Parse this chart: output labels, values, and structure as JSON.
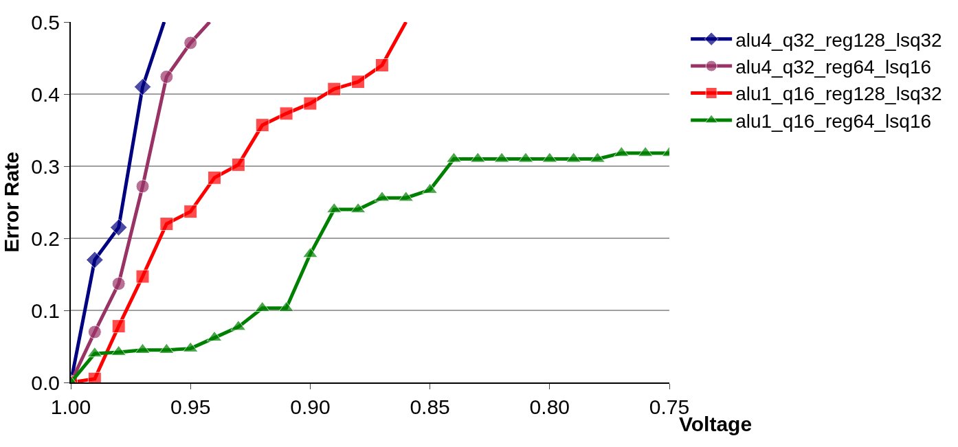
{
  "chart_data": {
    "type": "line",
    "xlabel": "Voltage",
    "ylabel": "Error Rate",
    "xlim": [
      1.0,
      0.75
    ],
    "xticks": [
      {
        "value": 1.0,
        "label": "1.00"
      },
      0.95,
      {
        "value": 0.9,
        "label": "0.90"
      },
      0.85,
      {
        "value": 0.8,
        "label": "0.80"
      },
      0.75
    ],
    "ylim": [
      0,
      0.5
    ],
    "yticks": [
      {
        "value": 0,
        "label": "0.0"
      },
      0.1,
      0.2,
      0.3,
      0.4,
      0.5
    ],
    "grid": "y",
    "legend": "right",
    "line_style": "solid",
    "series": [
      {
        "name": "alu4_q32_reg128_lsq32",
        "color": "#000080",
        "marker": "diamond",
        "x": [
          1.0,
          0.99,
          0.98,
          0.97,
          0.961
        ],
        "values": [
          0,
          0.17,
          0.215,
          0.41,
          0.5
        ]
      },
      {
        "name": "alu4_q32_reg64_lsq16",
        "color": "#993366",
        "marker": "circle",
        "x": [
          1.0,
          0.99,
          0.98,
          0.97,
          0.96,
          0.95,
          0.942
        ],
        "values": [
          0,
          0.07,
          0.137,
          0.272,
          0.424,
          0.471,
          0.5
        ]
      },
      {
        "name": "alu1_q16_reg128_lsq32",
        "color": "#ff0000",
        "marker": "square",
        "x": [
          1.0,
          0.99,
          0.98,
          0.97,
          0.96,
          0.95,
          0.94,
          0.93,
          0.92,
          0.91,
          0.9,
          0.89,
          0.88,
          0.87,
          0.86
        ],
        "values": [
          0,
          0.005,
          0.078,
          0.147,
          0.22,
          0.237,
          0.284,
          0.302,
          0.357,
          0.373,
          0.387,
          0.407,
          0.417,
          0.44,
          0.5
        ]
      },
      {
        "name": "alu1_q16_reg64_lsq16",
        "color": "#008000",
        "marker": "triangle",
        "x": [
          1.0,
          0.99,
          0.98,
          0.97,
          0.96,
          0.95,
          0.94,
          0.93,
          0.92,
          0.91,
          0.9,
          0.89,
          0.88,
          0.87,
          0.86,
          0.85,
          0.84,
          0.83,
          0.82,
          0.81,
          0.8,
          0.79,
          0.78,
          0.77,
          0.76,
          0.75
        ],
        "values": [
          0,
          0.04,
          0.042,
          0.045,
          0.045,
          0.047,
          0.062,
          0.077,
          0.103,
          0.103,
          0.178,
          0.24,
          0.24,
          0.256,
          0.256,
          0.267,
          0.31,
          0.31,
          0.31,
          0.31,
          0.31,
          0.31,
          0.31,
          0.318,
          0.318,
          0.318
        ]
      }
    ]
  }
}
